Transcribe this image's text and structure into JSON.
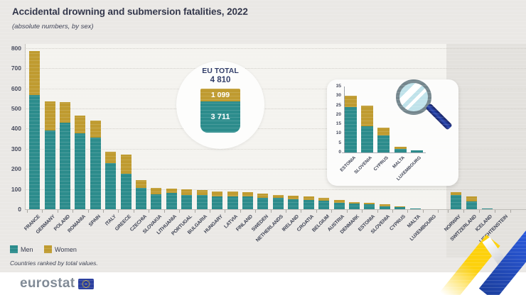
{
  "header": {
    "title": "Accidental drowning and submersion fatalities, 2022",
    "subtitle": "(absolute numbers, by sex)"
  },
  "note": "Countries ranked by total values.",
  "footer": {
    "brand": "eurostat"
  },
  "colors": {
    "men": "#2c8c8c",
    "women": "#bf9b30",
    "title_navy": "#2e3247",
    "eu_flag_blue": "#2b3f9e",
    "swoosh_blue": "#2453cc",
    "swoosh_yellow": "#fdd10c",
    "efta_panel": "#e3e1dd"
  },
  "chart_data": {
    "type": "bar",
    "stacked": true,
    "title": "Accidental drowning and submersion fatalities, 2022",
    "subtitle": "(absolute numbers, by sex)",
    "ylim": [
      0,
      800
    ],
    "yticks": [
      0,
      100,
      200,
      300,
      400,
      500,
      600,
      700,
      800
    ],
    "grid": true,
    "legend": [
      {
        "label": "Men",
        "color": "#2c8c8c"
      },
      {
        "label": "Women",
        "color": "#bf9b30"
      }
    ],
    "eu_total": {
      "label": "EU TOTAL",
      "total": "4 810",
      "women": "1 099",
      "men": "3 711"
    },
    "eu_countries": [
      {
        "name": "FRANCE",
        "men": 565,
        "women": 220
      },
      {
        "name": "GERMANY",
        "men": 390,
        "women": 145
      },
      {
        "name": "POLAND",
        "men": 430,
        "women": 100
      },
      {
        "name": "ROMANIA",
        "men": 375,
        "women": 90
      },
      {
        "name": "SPAIN",
        "men": 355,
        "women": 85
      },
      {
        "name": "ITALY",
        "men": 230,
        "women": 55
      },
      {
        "name": "GREECE",
        "men": 175,
        "women": 95
      },
      {
        "name": "CZECHIA",
        "men": 105,
        "women": 40
      },
      {
        "name": "SLOVAKIA",
        "men": 75,
        "women": 30
      },
      {
        "name": "LITHUANIA",
        "men": 80,
        "women": 22
      },
      {
        "name": "PORTUGAL",
        "men": 70,
        "women": 28
      },
      {
        "name": "BULGARIA",
        "men": 72,
        "women": 23
      },
      {
        "name": "HUNGARY",
        "men": 62,
        "women": 26
      },
      {
        "name": "LATVIA",
        "men": 62,
        "women": 26
      },
      {
        "name": "FINLAND",
        "men": 63,
        "women": 21
      },
      {
        "name": "SWEDEN",
        "men": 58,
        "women": 18
      },
      {
        "name": "NETHERLANDS",
        "men": 55,
        "women": 15
      },
      {
        "name": "IRELAND",
        "men": 50,
        "women": 18
      },
      {
        "name": "CROATIA",
        "men": 45,
        "women": 17
      },
      {
        "name": "BELGIUM",
        "men": 43,
        "women": 15
      },
      {
        "name": "AUSTRIA",
        "men": 32,
        "women": 12
      },
      {
        "name": "DENMARK",
        "men": 28,
        "women": 6
      },
      {
        "name": "ESTONIA",
        "men": 24,
        "women": 6
      },
      {
        "name": "SLOVENIA",
        "men": 14,
        "women": 11
      },
      {
        "name": "CYPRUS",
        "men": 9,
        "women": 4
      },
      {
        "name": "MALTA",
        "men": 2,
        "women": 1
      },
      {
        "name": "LUXEMBOURG",
        "men": 1,
        "women": 0
      }
    ],
    "efta_countries": [
      {
        "name": "NORWAY",
        "men": 70,
        "women": 16
      },
      {
        "name": "SWITZERLAND",
        "men": 38,
        "women": 24
      },
      {
        "name": "ICELAND",
        "men": 2,
        "women": 0
      },
      {
        "name": "LIECHTENSTEIN",
        "men": 0,
        "women": 0
      }
    ],
    "inset": {
      "ylim": [
        0,
        35
      ],
      "yticks": [
        0,
        5,
        10,
        15,
        20,
        25,
        30,
        35
      ],
      "countries": [
        {
          "name": "ESTONIA",
          "men": 24,
          "women": 6
        },
        {
          "name": "SLOVENIA",
          "men": 14,
          "women": 11
        },
        {
          "name": "CYPRUS",
          "men": 9,
          "women": 4
        },
        {
          "name": "MALTA",
          "men": 2,
          "women": 1
        },
        {
          "name": "LUXEMBOURG",
          "men": 1,
          "women": 0
        }
      ]
    }
  }
}
